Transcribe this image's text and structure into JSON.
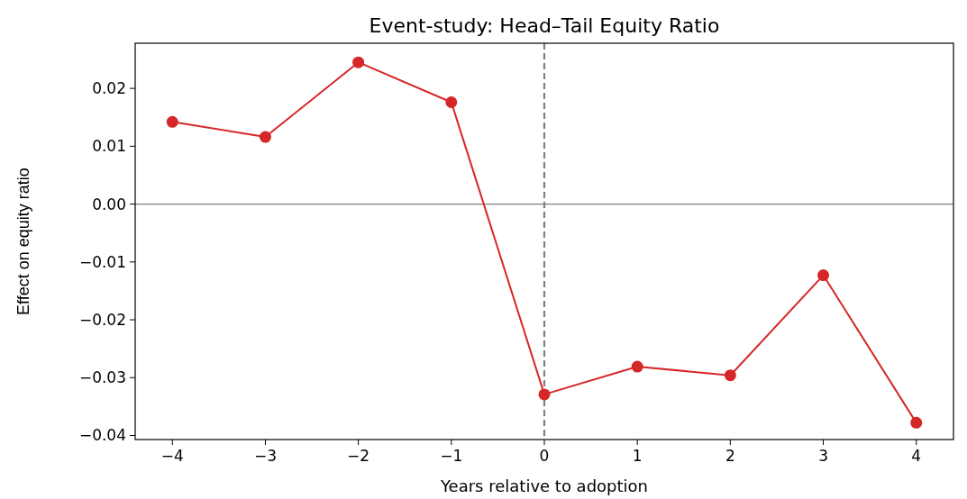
{
  "chart_data": {
    "type": "line",
    "title": "Event-study: Head–Tail Equity Ratio",
    "xlabel": "Years relative to adoption",
    "ylabel": "Effect on equity ratio",
    "x": [
      -4,
      -3,
      -2,
      -1,
      0,
      1,
      2,
      3,
      4
    ],
    "series": [
      {
        "color": "#d62728",
        "values": [
          0.0142,
          0.0116,
          0.0245,
          0.0176,
          -0.0329,
          -0.0281,
          -0.0296,
          -0.0123,
          -0.0378
        ]
      }
    ],
    "xlim": [
      -4.4,
      4.4
    ],
    "xticks": [
      {
        "value": -4,
        "label": "−4"
      },
      {
        "value": -3,
        "label": "−3"
      },
      {
        "value": -2,
        "label": "−2"
      },
      {
        "value": -1,
        "label": "−1"
      },
      0,
      1,
      2,
      3,
      4
    ],
    "ylim": [
      -0.0407,
      0.0278
    ],
    "yticks": [
      {
        "value": -0.04,
        "label": "−0.04"
      },
      {
        "value": -0.03,
        "label": "−0.03"
      },
      {
        "value": -0.02,
        "label": "−0.02"
      },
      {
        "value": -0.01,
        "label": "−0.01"
      },
      {
        "value": 0,
        "label": "0.00"
      },
      {
        "value": 0.01,
        "label": "0.01"
      },
      {
        "value": 0.02,
        "label": "0.02"
      }
    ],
    "ref_lines": [
      {
        "axis": "y",
        "value": 0,
        "color": "#808080",
        "line_style": "solid"
      },
      {
        "axis": "x",
        "value": 0,
        "color": "#808080",
        "line_style": "dashed"
      }
    ],
    "marker": "circle",
    "line_style": "solid"
  }
}
